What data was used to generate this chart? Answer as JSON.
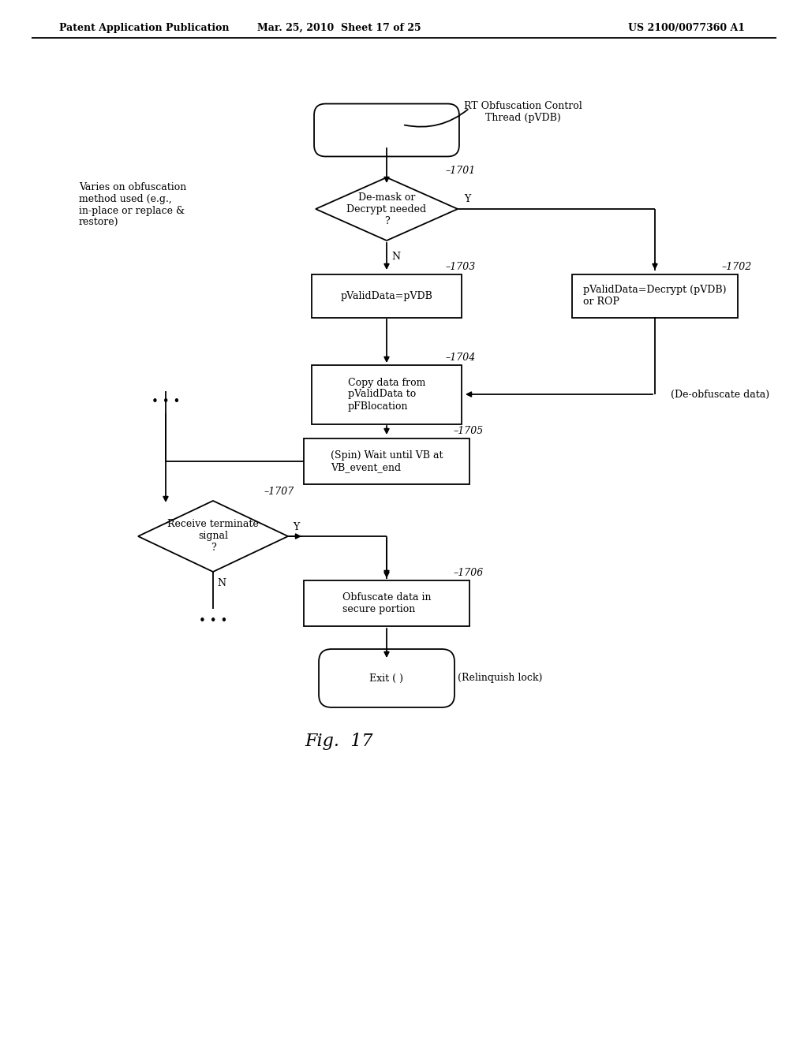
{
  "header_left": "Patent Application Publication",
  "header_mid": "Mar. 25, 2010  Sheet 17 of 25",
  "header_right": "US 2100/0077360 A1",
  "fig_label": "Fig.  17",
  "bg_color": "#ffffff",
  "line_color": "#000000",
  "text_color": "#000000",
  "start_label": "RT Obfuscation Control\nThread (pVDB)",
  "d1701_text": "De-mask or\nDecrypt needed\n?",
  "d1701_num": "1701",
  "b1703_text": "pValidData=pVDB",
  "b1703_num": "1703",
  "b1702_text": "pValidData=Decrypt (pVDB)\nor ROP",
  "b1702_num": "1702",
  "b1704_text": "Copy data from\npValidData to\npFBlocation",
  "b1704_num": "1704",
  "b1705_text": "(Spin) Wait until VB at\nVB_event_end",
  "b1705_num": "1705",
  "d1707_text": "Receive terminate\nsignal\n?",
  "d1707_num": "1707",
  "b1706_text": "Obfuscate data in\nsecure portion",
  "b1706_num": "1706",
  "end_text": "Exit ( )",
  "note1": "Varies on obfuscation\nmethod used (e.g.,\nin-place or replace &\nrestore)",
  "note2": "(De-obfuscate data)",
  "note3": "(Relinquish lock)"
}
